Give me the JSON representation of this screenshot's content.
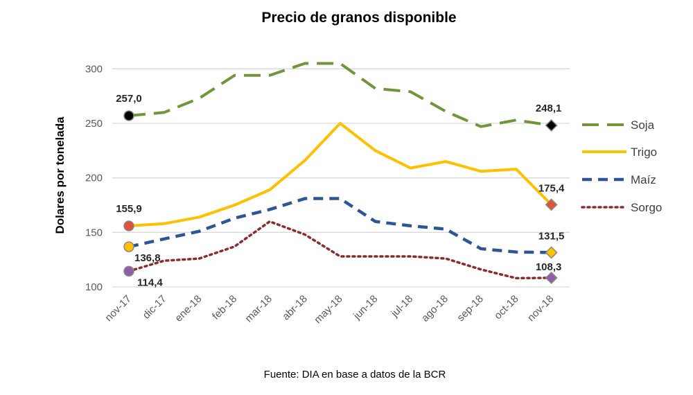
{
  "chart_data": {
    "type": "line",
    "title": "Precio de granos disponible",
    "ylabel": "Dolares por tonelada",
    "xlabel": "",
    "source": "Fuente: DIA en base a datos de la BCR",
    "ylim": [
      100,
      325
    ],
    "yticks": [
      100,
      150,
      200,
      250,
      300
    ],
    "grid": true,
    "legend_position": "right",
    "categories": [
      "nov-17",
      "dic-17",
      "ene-18",
      "feb-18",
      "mar-18",
      "abr-18",
      "may-18",
      "jun-18",
      "jul-18",
      "ago-18",
      "sep-18",
      "oct-18",
      "nov-18"
    ],
    "series": [
      {
        "name": "Soja",
        "color": "#70963a",
        "style": "long-dash",
        "values": [
          257.0,
          260,
          273,
          294,
          294,
          305,
          305,
          282,
          279,
          261,
          247,
          253,
          248.1
        ],
        "start_label": "257,0",
        "end_label": "248,1",
        "start_marker": "circle",
        "start_fill": "#000000",
        "end_marker": "diamond",
        "end_fill": "#000000"
      },
      {
        "name": "Trigo",
        "color": "#ffc000",
        "style": "solid",
        "values": [
          155.9,
          158,
          164,
          175,
          189,
          216,
          250,
          225,
          209,
          215,
          206,
          208,
          175.4
        ],
        "start_label": "155,9",
        "end_label": "175,4",
        "start_marker": "circle",
        "start_fill": "#e0523a",
        "end_marker": "diamond",
        "end_fill": "#e0523a"
      },
      {
        "name": "Maíz",
        "color": "#2e5597",
        "style": "dash",
        "values": [
          136.8,
          144,
          151,
          163,
          171,
          181,
          181,
          160,
          156,
          153,
          135,
          132,
          131.5
        ],
        "start_label": "136,8",
        "end_label": "131,5",
        "start_marker": "circle",
        "start_fill": "#ffc000",
        "end_marker": "diamond",
        "end_fill": "#ffc000"
      },
      {
        "name": "Sorgo",
        "color": "#8b2b2b",
        "style": "dot",
        "values": [
          114.4,
          124,
          126,
          137,
          160,
          148,
          128,
          128,
          128,
          126,
          116,
          108,
          108.3
        ],
        "start_label": "114,4",
        "end_label": "108,3",
        "start_marker": "circle",
        "start_fill": "#8e5fa8",
        "end_marker": "diamond",
        "end_fill": "#8e5fa8"
      }
    ]
  }
}
